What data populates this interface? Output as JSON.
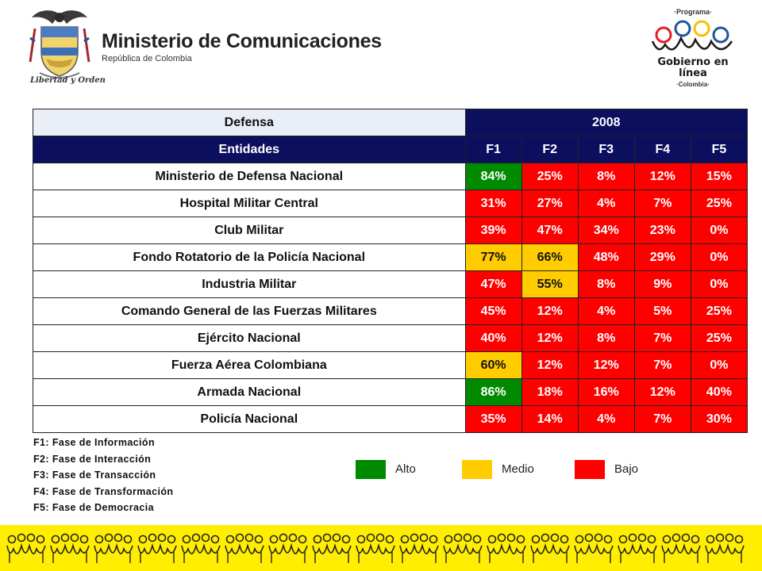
{
  "header": {
    "ministry_name": "Ministerio de Comunicaciones",
    "ministry_subtitle": "República de Colombia",
    "motto": "Libertad y Orden",
    "program_top": "·Programa·",
    "program_title_line1": "Gobierno en línea",
    "program_bottom": "·Colombia·"
  },
  "colors": {
    "header_dark": "#0c0e5e",
    "header_light": "#e9eef7",
    "alto": "#008a00",
    "medio": "#ffcc00",
    "bajo": "#ff0000",
    "band": "#ffee00"
  },
  "table": {
    "sector": "Defensa",
    "year": "2008",
    "entities_header": "Entidades",
    "phases": [
      "F1",
      "F2",
      "F3",
      "F4",
      "F5"
    ],
    "rows": [
      {
        "entity": "Ministerio de Defensa Nacional",
        "values": [
          "84%",
          "25%",
          "8%",
          "12%",
          "15%"
        ],
        "levels": [
          "alto",
          "bajo",
          "bajo",
          "bajo",
          "bajo"
        ]
      },
      {
        "entity": "Hospital Militar Central",
        "values": [
          "31%",
          "27%",
          "4%",
          "7%",
          "25%"
        ],
        "levels": [
          "bajo",
          "bajo",
          "bajo",
          "bajo",
          "bajo"
        ]
      },
      {
        "entity": "Club Militar",
        "values": [
          "39%",
          "47%",
          "34%",
          "23%",
          "0%"
        ],
        "levels": [
          "bajo",
          "bajo",
          "bajo",
          "bajo",
          "bajo"
        ]
      },
      {
        "entity": "Fondo Rotatorio de la Policía Nacional",
        "values": [
          "77%",
          "66%",
          "48%",
          "29%",
          "0%"
        ],
        "levels": [
          "medio",
          "medio",
          "bajo",
          "bajo",
          "bajo"
        ]
      },
      {
        "entity": "Industria Militar",
        "values": [
          "47%",
          "55%",
          "8%",
          "9%",
          "0%"
        ],
        "levels": [
          "bajo",
          "medio",
          "bajo",
          "bajo",
          "bajo"
        ]
      },
      {
        "entity": "Comando General de las Fuerzas Militares",
        "values": [
          "45%",
          "12%",
          "4%",
          "5%",
          "25%"
        ],
        "levels": [
          "bajo",
          "bajo",
          "bajo",
          "bajo",
          "bajo"
        ]
      },
      {
        "entity": "Ejército Nacional",
        "values": [
          "40%",
          "12%",
          "8%",
          "7%",
          "25%"
        ],
        "levels": [
          "bajo",
          "bajo",
          "bajo",
          "bajo",
          "bajo"
        ]
      },
      {
        "entity": "Fuerza Aérea Colombiana",
        "values": [
          "60%",
          "12%",
          "12%",
          "7%",
          "0%"
        ],
        "levels": [
          "medio",
          "bajo",
          "bajo",
          "bajo",
          "bajo"
        ]
      },
      {
        "entity": "Armada Nacional",
        "values": [
          "86%",
          "18%",
          "16%",
          "12%",
          "40%"
        ],
        "levels": [
          "alto",
          "bajo",
          "bajo",
          "bajo",
          "bajo"
        ]
      },
      {
        "entity": "Policía Nacional",
        "values": [
          "35%",
          "14%",
          "4%",
          "7%",
          "30%"
        ],
        "levels": [
          "bajo",
          "bajo",
          "bajo",
          "bajo",
          "bajo"
        ]
      }
    ]
  },
  "notes": [
    "F1: Fase de Información",
    "F2: Fase de Interacción",
    "F3: Fase de Transacción",
    "F4: Fase de Transformación",
    "F5: Fase de Democracia"
  ],
  "legend": [
    {
      "label": "Alto",
      "level": "alto"
    },
    {
      "label": "Medio",
      "level": "medio"
    },
    {
      "label": "Bajo",
      "level": "bajo"
    }
  ]
}
